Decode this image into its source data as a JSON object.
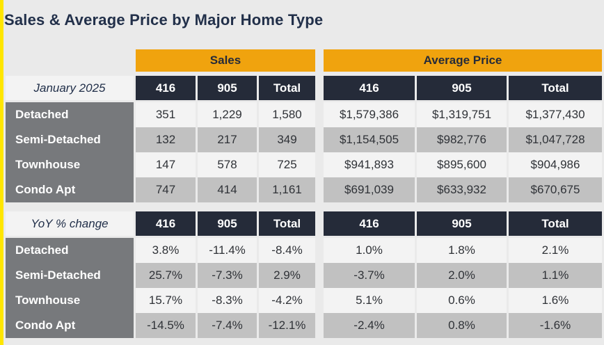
{
  "page": {
    "title": "Sales & Average Price by Major Home Type"
  },
  "colors": {
    "page_bg": "#EAEAEA",
    "edge_stripe_yellow": "#FFE600",
    "band_orange": "#F0A30E",
    "header_navy": "#252B39",
    "row_label_gray": "#77797C",
    "row_light": "#F3F3F3",
    "row_shaded": "#C1C1C1",
    "title_navy": "#22304A"
  },
  "chart_data": {
    "type": "table",
    "title": "Sales & Average Price by Major Home Type",
    "column_groups": [
      "Sales",
      "Average Price"
    ],
    "columns": [
      "416",
      "905",
      "Total"
    ],
    "sections": [
      {
        "label": "January 2025",
        "rows": [
          {
            "category": "Detached",
            "sales": [
              "351",
              "1,229",
              "1,580"
            ],
            "average_price": [
              "$1,579,386",
              "$1,319,751",
              "$1,377,430"
            ]
          },
          {
            "category": "Semi-Detached",
            "sales": [
              "132",
              "217",
              "349"
            ],
            "average_price": [
              "$1,154,505",
              "$982,776",
              "$1,047,728"
            ]
          },
          {
            "category": "Townhouse",
            "sales": [
              "147",
              "578",
              "725"
            ],
            "average_price": [
              "$941,893",
              "$895,600",
              "$904,986"
            ]
          },
          {
            "category": "Condo Apt",
            "sales": [
              "747",
              "414",
              "1,161"
            ],
            "average_price": [
              "$691,039",
              "$633,932",
              "$670,675"
            ]
          }
        ]
      },
      {
        "label": "YoY % change",
        "rows": [
          {
            "category": "Detached",
            "sales": [
              "3.8%",
              "-11.4%",
              "-8.4%"
            ],
            "average_price": [
              "1.0%",
              "1.8%",
              "2.1%"
            ]
          },
          {
            "category": "Semi-Detached",
            "sales": [
              "25.7%",
              "-7.3%",
              "2.9%"
            ],
            "average_price": [
              "-3.7%",
              "2.0%",
              "1.1%"
            ]
          },
          {
            "category": "Townhouse",
            "sales": [
              "15.7%",
              "-8.3%",
              "-4.2%"
            ],
            "average_price": [
              "5.1%",
              "0.6%",
              "1.6%"
            ]
          },
          {
            "category": "Condo Apt",
            "sales": [
              "-14.5%",
              "-7.4%",
              "-12.1%"
            ],
            "average_price": [
              "-2.4%",
              "0.8%",
              "-1.6%"
            ]
          }
        ]
      }
    ]
  }
}
